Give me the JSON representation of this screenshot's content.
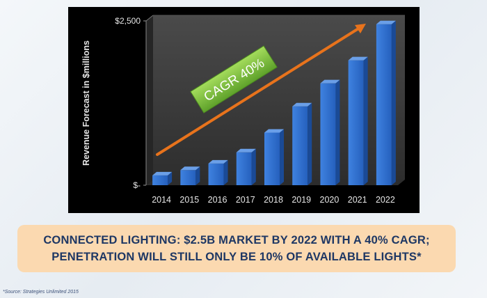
{
  "chart_data": {
    "type": "bar",
    "ylabel": "Revenue Forecast in $millions",
    "xlabel": "",
    "ylim": [
      0,
      2500
    ],
    "ytick_labels": [
      "$-",
      "$2,500"
    ],
    "categories": [
      "2014",
      "2015",
      "2016",
      "2017",
      "2018",
      "2019",
      "2020",
      "2021",
      "2022"
    ],
    "values": [
      150,
      230,
      330,
      500,
      800,
      1200,
      1550,
      1900,
      2450
    ],
    "annotation": "CAGR 40%",
    "colors": {
      "bar_front": "#2f6fd0",
      "bar_side": "#1a4a96",
      "bar_top": "#6a9fe8",
      "wall": "#3a3a3a",
      "floor": "#2c2c2c",
      "arrow": "#e8731c",
      "annotation_bg": "#7cc23c",
      "axis_text": "#e6e6e6"
    }
  },
  "caption": {
    "line1": "CONNECTED LIGHTING: $2.5B MARKET BY 2022 WITH A 40% CAGR;",
    "line2": "PENETRATION WILL STILL ONLY BE 10% OF AVAILABLE LIGHTS*"
  },
  "footnote": "*Source: Strategies Unlimited 2015"
}
